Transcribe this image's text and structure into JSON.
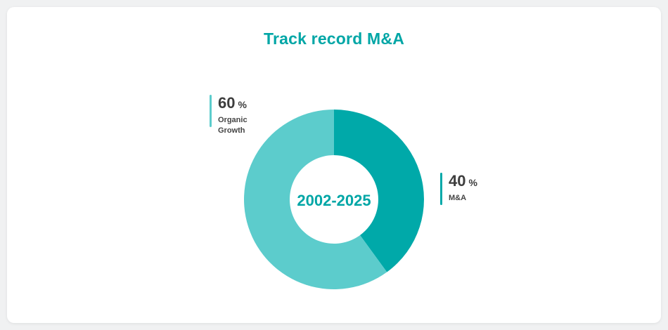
{
  "card": {
    "title": "Track record M&A"
  },
  "chart_data": {
    "type": "pie",
    "title": "Track record M&A",
    "center_label": "2002-2025",
    "unit": "%",
    "slices": [
      {
        "label": "M&A",
        "value": 40,
        "color": "#00a9a9"
      },
      {
        "label": "Organic Growth",
        "value": 60,
        "color": "#5ccccc"
      }
    ],
    "legend_placement": "outside-labels"
  },
  "legend": {
    "organic": {
      "value": "60",
      "unit": "%",
      "label": "Organic Growth",
      "color": "#5ccccc"
    },
    "ma": {
      "value": "40",
      "unit": "%",
      "label": "M&A",
      "color": "#00a9a9"
    }
  }
}
